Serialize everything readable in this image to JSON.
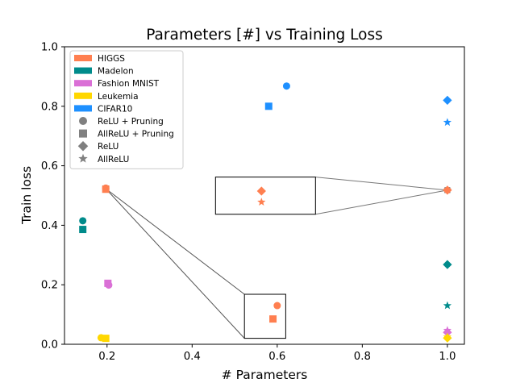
{
  "chart_data": {
    "type": "scatter",
    "title": "Parameters [#] vs Training Loss",
    "xlabel": "# Parameters",
    "ylabel": "Train loss",
    "xlim": [
      0.1,
      1.04
    ],
    "ylim": [
      0.0,
      1.0
    ],
    "xticks": [
      0.2,
      0.4,
      0.6,
      0.8,
      1.0
    ],
    "xtick_labels": [
      "0.2",
      "0.4",
      "0.6",
      "0.8",
      "1.0"
    ],
    "yticks": [
      0.0,
      0.2,
      0.4,
      0.6,
      0.8,
      1.0
    ],
    "ytick_labels": [
      "0.0",
      "0.2",
      "0.4",
      "0.6",
      "0.8",
      "1.0"
    ],
    "grid": false,
    "legend_position": "top-left",
    "colors": {
      "HIGGS": "#ff7f50",
      "Madelon": "#008b8b",
      "Fashion MNIST": "#da70d6",
      "Leukemia": "#ffd700",
      "CIFAR10": "#1e90ff",
      "marker_gray": "#808080",
      "inset_line": "#555555"
    },
    "legend": {
      "datasets": [
        "HIGGS",
        "Madelon",
        "Fashion MNIST",
        "Leukemia",
        "CIFAR10"
      ],
      "methods": [
        {
          "label": "ReLU + Pruning",
          "marker": "circle"
        },
        {
          "label": "AllReLU + Pruning",
          "marker": "square"
        },
        {
          "label": "ReLU",
          "marker": "diamond"
        },
        {
          "label": "AllReLU",
          "marker": "star"
        }
      ]
    },
    "points": [
      {
        "dataset": "HIGGS",
        "method": "ReLU + Pruning",
        "x": 0.197,
        "y": 0.525
      },
      {
        "dataset": "HIGGS",
        "method": "AllReLU + Pruning",
        "x": 0.197,
        "y": 0.521
      },
      {
        "dataset": "HIGGS",
        "method": "ReLU",
        "x": 1.0,
        "y": 0.518
      },
      {
        "dataset": "HIGGS",
        "method": "AllReLU",
        "x": 1.0,
        "y": 0.519
      },
      {
        "dataset": "Madelon",
        "method": "ReLU + Pruning",
        "x": 0.143,
        "y": 0.415
      },
      {
        "dataset": "Madelon",
        "method": "AllReLU + Pruning",
        "x": 0.143,
        "y": 0.386
      },
      {
        "dataset": "Madelon",
        "method": "ReLU",
        "x": 1.0,
        "y": 0.268
      },
      {
        "dataset": "Madelon",
        "method": "AllReLU",
        "x": 1.0,
        "y": 0.13
      },
      {
        "dataset": "Fashion MNIST",
        "method": "ReLU + Pruning",
        "x": 0.204,
        "y": 0.199
      },
      {
        "dataset": "Fashion MNIST",
        "method": "AllReLU + Pruning",
        "x": 0.202,
        "y": 0.205
      },
      {
        "dataset": "Fashion MNIST",
        "method": "ReLU",
        "x": 1.0,
        "y": 0.04
      },
      {
        "dataset": "Fashion MNIST",
        "method": "AllReLU",
        "x": 1.0,
        "y": 0.047
      },
      {
        "dataset": "Leukemia",
        "method": "ReLU + Pruning",
        "x": 0.186,
        "y": 0.022
      },
      {
        "dataset": "Leukemia",
        "method": "AllReLU + Pruning",
        "x": 0.197,
        "y": 0.02
      },
      {
        "dataset": "Leukemia",
        "method": "ReLU",
        "x": 1.0,
        "y": 0.021
      },
      {
        "dataset": "Leukemia",
        "method": "AllReLU",
        "x": 1.0,
        "y": 0.025
      },
      {
        "dataset": "CIFAR10",
        "method": "ReLU + Pruning",
        "x": 0.622,
        "y": 0.868
      },
      {
        "dataset": "CIFAR10",
        "method": "AllReLU + Pruning",
        "x": 0.58,
        "y": 0.8
      },
      {
        "dataset": "CIFAR10",
        "method": "ReLU",
        "x": 1.0,
        "y": 0.82
      },
      {
        "dataset": "CIFAR10",
        "method": "AllReLU",
        "x": 1.0,
        "y": 0.746
      }
    ],
    "insets": [
      {
        "name": "pruning-zoom",
        "box_x": [
          0.523,
          0.62
        ],
        "box_y": [
          0.02,
          0.168
        ],
        "source": [
          0.197,
          0.523
        ],
        "points": [
          {
            "dataset": "HIGGS",
            "method": "ReLU + Pruning",
            "x": 0.6,
            "y": 0.13
          },
          {
            "dataset": "HIGGS",
            "method": "AllReLU + Pruning",
            "x": 0.59,
            "y": 0.085
          }
        ]
      },
      {
        "name": "relu-zoom",
        "box_x": [
          0.455,
          0.69
        ],
        "box_y": [
          0.437,
          0.562
        ],
        "source": [
          1.0,
          0.518
        ],
        "points": [
          {
            "dataset": "HIGGS",
            "method": "ReLU",
            "x": 0.563,
            "y": 0.515
          },
          {
            "dataset": "HIGGS",
            "method": "AllReLU",
            "x": 0.563,
            "y": 0.478
          }
        ]
      }
    ]
  }
}
